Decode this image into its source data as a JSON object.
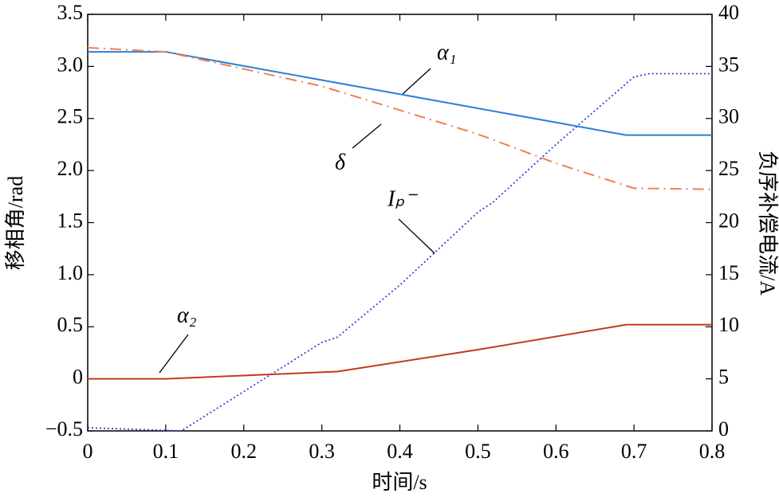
{
  "chart_data": {
    "type": "line",
    "x_label": "时间/s",
    "y_label": "移相角/rad",
    "y2_label": "负序补偿电流/A",
    "xlim": [
      0,
      0.8
    ],
    "xticks": [
      0,
      0.1,
      0.2,
      0.3,
      0.4,
      0.5,
      0.6,
      0.7,
      0.8
    ],
    "ylim": [
      -0.5,
      3.5
    ],
    "yticks": [
      {
        "value": -0.5,
        "label": "−0.5"
      },
      0,
      0.5,
      {
        "value": 1,
        "label": "1.0"
      },
      1.5,
      {
        "value": 2,
        "label": "2.0"
      },
      2.5,
      {
        "value": 3,
        "label": "3.0"
      },
      3.5
    ],
    "y2lim": [
      0,
      40
    ],
    "y2ticks": [
      0,
      5,
      10,
      15,
      20,
      25,
      30,
      35,
      40
    ],
    "series": [
      {
        "name": "α₁",
        "color": "#2b7fd8",
        "dash": "solid",
        "x": [
          0,
          0.1,
          0.69,
          0.8
        ],
        "values": [
          3.14,
          3.14,
          2.34,
          2.34
        ]
      },
      {
        "name": "δ",
        "color": "#f08050",
        "dash": "dashdot",
        "x": [
          0,
          0.1,
          0.3,
          0.4,
          0.5,
          0.6,
          0.7,
          0.8
        ],
        "values": [
          3.18,
          3.14,
          2.81,
          2.58,
          2.35,
          2.07,
          1.83,
          1.82
        ]
      },
      {
        "name": "Iₚ⁻",
        "color": "#3a3ad8",
        "dash": "dotted",
        "axis": "y2",
        "x": [
          0,
          0.12,
          0.3,
          0.32,
          0.4,
          0.5,
          0.52,
          0.6,
          0.7,
          0.72,
          0.8
        ],
        "values": [
          0.3,
          0,
          8.5,
          9,
          14,
          21,
          22,
          27.5,
          34,
          34.3,
          34.3
        ]
      },
      {
        "name": "α₂",
        "color": "#c23a1e",
        "dash": "solid",
        "x": [
          0,
          0.1,
          0.32,
          0.5,
          0.69,
          0.8
        ],
        "values": [
          0,
          0,
          0.07,
          0.28,
          0.52,
          0.52
        ]
      }
    ]
  }
}
